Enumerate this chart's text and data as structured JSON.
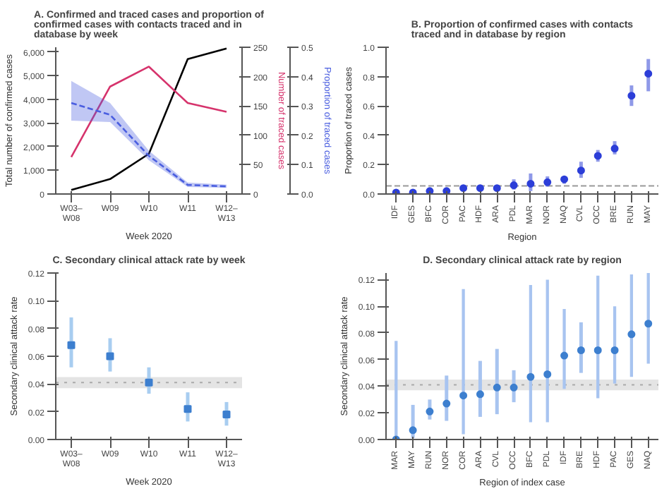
{
  "chart_data": [
    {
      "type": "line",
      "title": "A. Confirmed and traced cases and proportion of confirmed cases with contacts traced and in database by week",
      "xlabel": "Week 2020",
      "ylabel": "Total number of confirmed cases",
      "y2label": "Number of traced cases",
      "y3label": "Proportion of traced cases",
      "categories": [
        "W03–W08",
        "W09",
        "W10",
        "W11",
        "W12–W13"
      ],
      "ylim": [
        0,
        6200
      ],
      "yticks": [
        0,
        {
          "value": 1000,
          "label": "1,000"
        },
        {
          "value": 2000,
          "label": "2,000"
        },
        {
          "value": 3000,
          "label": "3,000"
        },
        {
          "value": 4000,
          "label": "4,000"
        },
        {
          "value": 5000,
          "label": "5,000"
        },
        {
          "value": 6000,
          "label": "6,000"
        }
      ],
      "y2lim": [
        0,
        250
      ],
      "y2ticks": [
        0,
        50,
        100,
        150,
        200,
        250
      ],
      "y3lim": [
        0,
        0.5
      ],
      "y3ticks": [
        {
          "value": 0,
          "label": "0.0"
        },
        0.1,
        0.2,
        0.3,
        0.4,
        0.5
      ],
      "grid": false,
      "series": [
        {
          "color": "#000000",
          "values": [
            170,
            630,
            1700,
            5700,
            6150
          ]
        },
        {
          "color": "#d6336c",
          "axis": "y2",
          "values": [
            63,
            183,
            217,
            155,
            140
          ]
        },
        {
          "color": "#4a5ee0",
          "axis": "y3",
          "line_style": "dashed",
          "values": [
            0.31,
            0.27,
            0.13,
            0.031,
            0.026
          ],
          "lower": [
            0.25,
            0.245,
            0.115,
            0.024,
            0.021
          ],
          "upper": [
            0.385,
            0.31,
            0.147,
            0.039,
            0.032
          ]
        }
      ]
    },
    {
      "type": "scatter",
      "title": "B. Proportion of confirmed cases with contacts traced and in database by region",
      "xlabel": "Region",
      "ylabel": "Proportion of traced cases",
      "categories": [
        "IDF",
        "GES",
        "BFC",
        "COR",
        "PAC",
        "HDF",
        "ARA",
        "PDL",
        "MAR",
        "NOR",
        "NAQ",
        "CVL",
        "OCC",
        "BRE",
        "RUN",
        "MAY"
      ],
      "ylim": [
        0,
        1.0
      ],
      "yticks": [
        {
          "value": 0,
          "label": "0.0"
        },
        0.2,
        0.4,
        0.6,
        0.8,
        {
          "value": 1.0,
          "label": "1.0"
        }
      ],
      "grid": false,
      "marker": "circle",
      "series": [
        {
          "color": "#2c3ed8",
          "values": [
            0.01,
            0.01,
            0.02,
            0.02,
            0.04,
            0.04,
            0.04,
            0.06,
            0.07,
            0.08,
            0.1,
            0.16,
            0.26,
            0.31,
            0.67,
            0.82
          ],
          "errors": [
            null,
            null,
            null,
            null,
            null,
            null,
            null,
            [
              0.03,
              0.1
            ],
            [
              0.02,
              0.14
            ],
            [
              0.05,
              0.12
            ],
            [
              0.07,
              0.12
            ],
            [
              0.11,
              0.22
            ],
            [
              0.22,
              0.3
            ],
            [
              0.27,
              0.36
            ],
            [
              0.6,
              0.74
            ],
            [
              0.7,
              0.92
            ]
          ]
        }
      ],
      "ref_lines": [
        {
          "axis": "y",
          "value": 0.055,
          "color": "#999999",
          "line_style": "dashed"
        }
      ]
    },
    {
      "type": "scatter",
      "title": "C. Secondary clinical attack rate by week",
      "xlabel": "Week 2020",
      "ylabel": "Secondary clinical attack rate",
      "categories": [
        "W03–W08",
        "W09",
        "W10",
        "W11",
        "W12–W13"
      ],
      "ylim": [
        0,
        0.12
      ],
      "yticks": [
        {
          "value": 0,
          "label": "0.00"
        },
        {
          "value": 0.02,
          "label": "0.02"
        },
        {
          "value": 0.04,
          "label": "0.04"
        },
        {
          "value": 0.06,
          "label": "0.06"
        },
        {
          "value": 0.08,
          "label": "0.08"
        },
        {
          "value": 0.1,
          "label": "0.10"
        },
        {
          "value": 0.12,
          "label": "0.12"
        }
      ],
      "grid": false,
      "marker": "square",
      "series": [
        {
          "color": "#3d7fcf",
          "values": [
            0.068,
            0.06,
            0.041,
            0.022,
            0.018
          ],
          "errors": [
            [
              0.052,
              0.088
            ],
            [
              0.049,
              0.073
            ],
            [
              0.033,
              0.052
            ],
            [
              0.013,
              0.034
            ],
            [
              0.01,
              0.027
            ]
          ]
        }
      ],
      "ref_lines": [
        {
          "axis": "y",
          "value": 0.041,
          "color": "#aaaaaa",
          "line_style": "dotted"
        }
      ],
      "bands": [
        {
          "axis": "y",
          "from": 0.037,
          "to": 0.045,
          "color": "#dddddd"
        }
      ]
    },
    {
      "type": "scatter",
      "title": "D. Secondary clinical attack rate by region",
      "xlabel": "Region of index case",
      "ylabel": "Secondary clinical attack rate",
      "categories": [
        "MAR",
        "MAY",
        "RUN",
        "NOR",
        "COR",
        "ARA",
        "CVL",
        "OCC",
        "BFC",
        "PDL",
        "IDF",
        "BRE",
        "HDF",
        "PAC",
        "GES",
        "NAQ"
      ],
      "ylim": [
        0,
        0.125
      ],
      "yticks": [
        {
          "value": 0,
          "label": "0.00"
        },
        {
          "value": 0.02,
          "label": "0.02"
        },
        {
          "value": 0.04,
          "label": "0.04"
        },
        {
          "value": 0.06,
          "label": "0.06"
        },
        {
          "value": 0.08,
          "label": "0.08"
        },
        {
          "value": 0.1,
          "label": "0.10"
        },
        {
          "value": 0.12,
          "label": "0.12"
        }
      ],
      "grid": false,
      "marker": "circle",
      "series": [
        {
          "color": "#3d7fcf",
          "values": [
            0.0,
            0.007,
            0.021,
            0.027,
            0.033,
            0.034,
            0.039,
            0.039,
            0.047,
            0.049,
            0.063,
            0.067,
            0.067,
            0.067,
            0.079,
            0.087
          ],
          "errors": [
            [
              0,
              0.074
            ],
            [
              0.001,
              0.026
            ],
            [
              0.015,
              0.03
            ],
            [
              0.014,
              0.048
            ],
            [
              0.004,
              0.113
            ],
            [
              0.017,
              0.059
            ],
            [
              0.019,
              0.068
            ],
            [
              0.028,
              0.052
            ],
            [
              0.013,
              0.116
            ],
            [
              0.013,
              0.12
            ],
            [
              0.038,
              0.098
            ],
            [
              0.05,
              0.088
            ],
            [
              0.031,
              0.123
            ],
            [
              0.042,
              0.1
            ],
            [
              0.047,
              0.124
            ],
            [
              0.057,
              0.125
            ]
          ]
        }
      ],
      "ref_lines": [
        {
          "axis": "y",
          "value": 0.041,
          "color": "#aaaaaa",
          "line_style": "dotted"
        }
      ],
      "bands": [
        {
          "axis": "y",
          "from": 0.037,
          "to": 0.045,
          "color": "#dddddd"
        }
      ]
    }
  ]
}
